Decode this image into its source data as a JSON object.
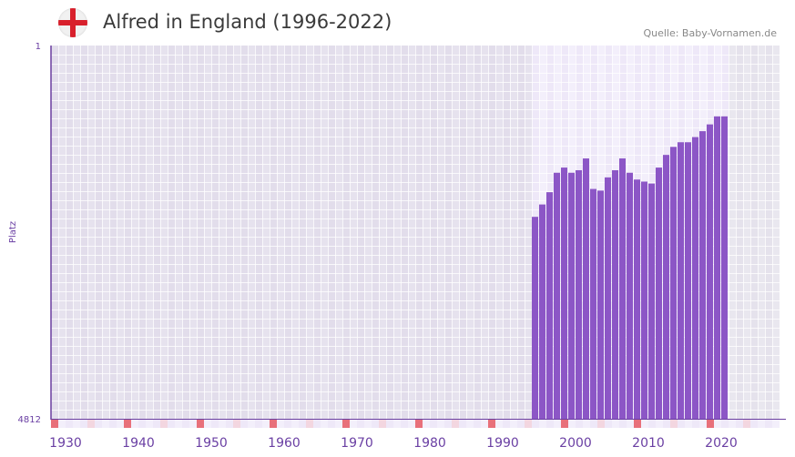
{
  "header": {
    "title": "Alfred in England (1996-2022)",
    "source": "Quelle: Baby-Vornamen.de",
    "flag_icon": "england-flag-icon"
  },
  "colors": {
    "bar": "#8c56c6",
    "axis": "#6b3fa0",
    "decade_marker": "#e8707a",
    "half_decade_marker": "#f3d6e0"
  },
  "chart_data": {
    "type": "bar",
    "title": "Alfred in England (1996-2022)",
    "xlabel": "",
    "ylabel": "Platz",
    "y_scale": "log",
    "y_inverted": true,
    "ylim": [
      1,
      4812
    ],
    "yticks": [
      "1",
      "4812"
    ],
    "xlim": [
      1930,
      2030
    ],
    "xticks": [
      "1930",
      "1940",
      "1950",
      "1960",
      "1970",
      "1980",
      "1990",
      "2000",
      "2010",
      "2020"
    ],
    "grid": true,
    "highlight_range": [
      1996,
      2022
    ],
    "x": [
      1996,
      1997,
      1998,
      1999,
      2000,
      2001,
      2002,
      2003,
      2004,
      2005,
      2006,
      2007,
      2008,
      2009,
      2010,
      2011,
      2012,
      2013,
      2014,
      2015,
      2016,
      2017,
      2018,
      2019,
      2020,
      2021,
      2022
    ],
    "values": [
      49,
      37,
      28,
      18,
      16,
      18,
      17,
      13,
      26,
      27,
      20,
      17,
      13,
      18,
      21,
      22,
      23,
      16,
      12,
      10,
      9,
      9,
      8,
      7,
      6,
      5,
      5
    ]
  }
}
